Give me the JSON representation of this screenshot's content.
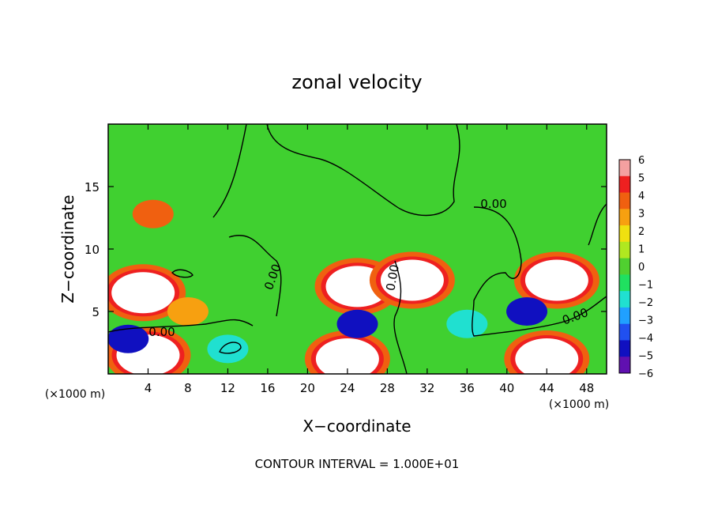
{
  "chart_data": {
    "type": "heatmap",
    "title": "zonal velocity",
    "xlabel": "X−coordinate",
    "ylabel": "Z−coordinate",
    "x_unit": "(×1000 m)",
    "y_unit": "(×1000 m)",
    "xlim": [
      0,
      50
    ],
    "ylim": [
      0,
      20
    ],
    "x_ticks": [
      4,
      8,
      12,
      16,
      20,
      24,
      28,
      32,
      36,
      40,
      44,
      48
    ],
    "y_ticks": [
      5,
      10,
      15
    ],
    "colorbar": {
      "ticks": [
        6,
        5,
        4,
        3,
        2,
        1,
        0,
        -1,
        -2,
        -3,
        -4,
        -5,
        -6
      ],
      "colors": [
        "#f4a0a0",
        "#ee2020",
        "#f06010",
        "#f7a010",
        "#f0e010",
        "#b0e820",
        "#50d030",
        "#20e060",
        "#20e0d0",
        "#20a0ff",
        "#2050f0",
        "#1010c0",
        "#6010b0"
      ]
    },
    "contour_labels": [
      "0.00",
      "0.00",
      "0.00",
      "0.00",
      "0.00"
    ],
    "footer": "CONTOUR INTERVAL = 1.000E+01",
    "features": [
      {
        "type": "blob",
        "x": 4.5,
        "z": 12.8,
        "value": 4.5
      },
      {
        "type": "blob",
        "x": 3.5,
        "z": 6.5,
        "value": 9
      },
      {
        "type": "blob",
        "x": 25,
        "z": 7,
        "value": 9
      },
      {
        "type": "blob",
        "x": 45,
        "z": 7.5,
        "value": 9
      },
      {
        "type": "blob",
        "x": 30.5,
        "z": 7.5,
        "value": 8
      },
      {
        "type": "blob",
        "x": 24,
        "z": 1.2,
        "value": 9
      },
      {
        "type": "blob",
        "x": 44,
        "z": 1.2,
        "value": 9
      },
      {
        "type": "blob",
        "x": 4,
        "z": 1.5,
        "value": 8
      },
      {
        "type": "blob",
        "x": 8,
        "z": 5,
        "value": 3
      },
      {
        "type": "blob",
        "x": 25,
        "z": 4,
        "value": -5
      },
      {
        "type": "blob",
        "x": 42,
        "z": 5,
        "value": -5
      },
      {
        "type": "blob",
        "x": 2,
        "z": 2.8,
        "value": -5
      },
      {
        "type": "blob",
        "x": 12,
        "z": 2,
        "value": -2
      },
      {
        "type": "blob",
        "x": 36,
        "z": 4,
        "value": -2
      }
    ]
  }
}
